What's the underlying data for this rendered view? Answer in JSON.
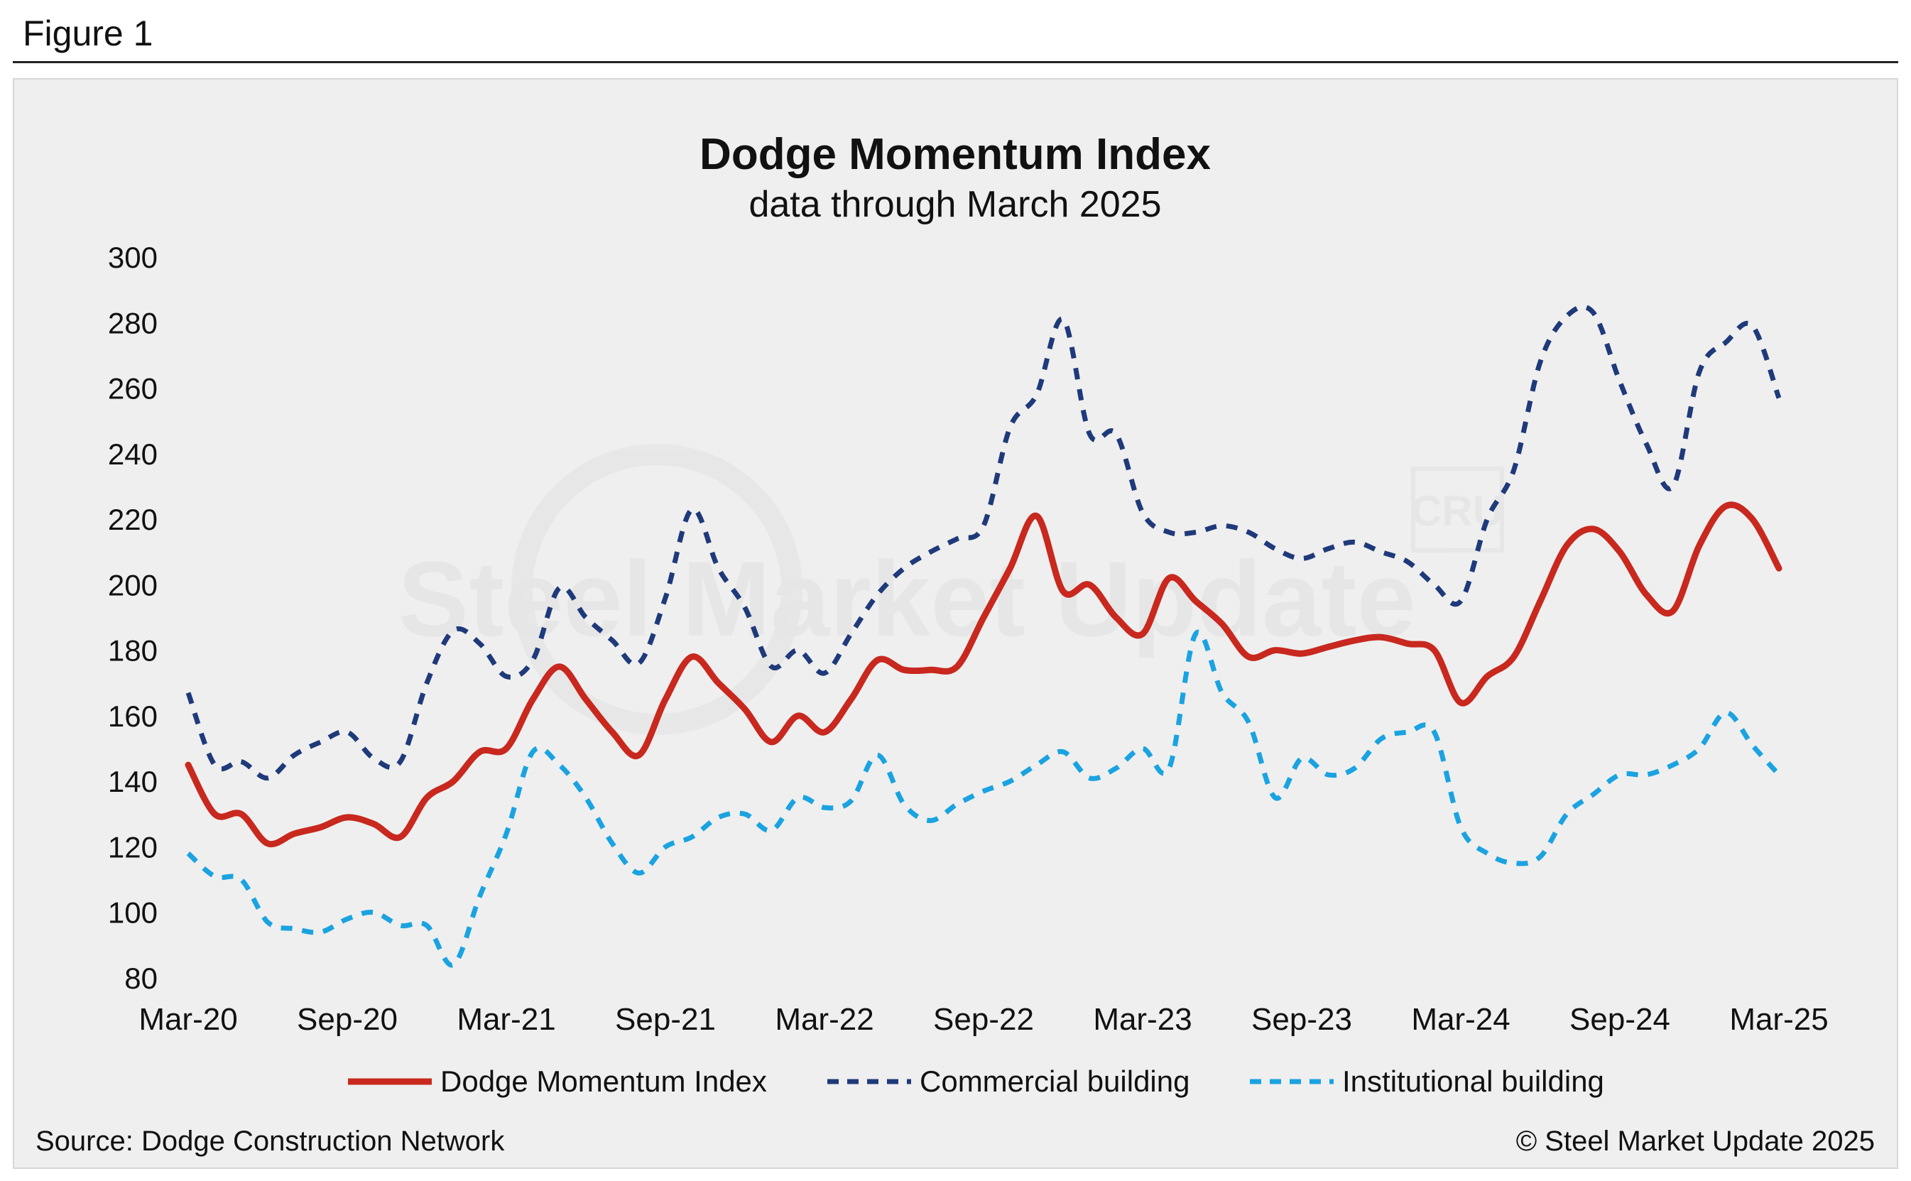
{
  "figure_label": "Figure 1",
  "source": "Source: Dodge Construction Network",
  "copyright": "© Steel Market Update 2025",
  "watermark": {
    "text": "Steel Market Update",
    "logo": "CRU"
  },
  "colors": {
    "dmi": "#c8281e",
    "commercial": "#1f3a7a",
    "institutional": "#1aa3e0",
    "panel_bg": "#efefef"
  },
  "chart_data": {
    "type": "line",
    "title": "Dodge Momentum Index",
    "subtitle": "data through March 2025",
    "ylim": [
      80,
      300
    ],
    "yticks": [
      300,
      280,
      260,
      240,
      220,
      200,
      180,
      160,
      140,
      120,
      100,
      80
    ],
    "xlim": [
      0,
      60
    ],
    "xticks": [
      {
        "label": "Mar-20",
        "x": 0
      },
      {
        "label": "Sep-20",
        "x": 6
      },
      {
        "label": "Mar-21",
        "x": 12
      },
      {
        "label": "Sep-21",
        "x": 18
      },
      {
        "label": "Mar-22",
        "x": 24
      },
      {
        "label": "Sep-22",
        "x": 30
      },
      {
        "label": "Mar-23",
        "x": 36
      },
      {
        "label": "Sep-23",
        "x": 42
      },
      {
        "label": "Mar-24",
        "x": 48
      },
      {
        "label": "Sep-24",
        "x": 54
      },
      {
        "label": "Mar-25",
        "x": 60
      }
    ],
    "legend_position": "bottom",
    "series": [
      {
        "name": "Dodge Momentum Index",
        "style": "solid",
        "color": "#c8281e",
        "values": [
          145,
          130,
          130,
          121,
          124,
          126,
          129,
          127,
          123,
          135,
          140,
          149,
          150,
          165,
          175,
          165,
          155,
          148,
          165,
          178,
          170,
          162,
          152,
          160,
          155,
          165,
          177,
          174,
          174,
          175,
          190,
          205,
          221,
          198,
          200,
          190,
          185,
          202,
          195,
          188,
          178,
          180,
          179,
          181,
          183,
          184,
          182,
          180,
          164,
          172,
          178,
          195,
          212,
          217,
          210,
          197,
          192,
          212,
          224,
          220,
          205
        ]
      },
      {
        "name": "Commercial building",
        "style": "dashed",
        "color": "#1f3a7a",
        "values": [
          167,
          145,
          146,
          141,
          148,
          152,
          155,
          147,
          146,
          170,
          186,
          182,
          172,
          177,
          199,
          190,
          183,
          176,
          196,
          223,
          205,
          193,
          175,
          180,
          173,
          185,
          197,
          205,
          210,
          214,
          218,
          248,
          258,
          281,
          246,
          246,
          222,
          216,
          216,
          218,
          216,
          211,
          208,
          211,
          213,
          210,
          207,
          200,
          195,
          220,
          235,
          268,
          282,
          283,
          262,
          243,
          230,
          265,
          274,
          279,
          257
        ]
      },
      {
        "name": "Institutional building",
        "style": "dashed",
        "color": "#1aa3e0",
        "values": [
          118,
          111,
          110,
          97,
          95,
          94,
          98,
          100,
          96,
          96,
          84,
          105,
          124,
          149,
          145,
          135,
          121,
          112,
          120,
          123,
          129,
          130,
          125,
          135,
          132,
          134,
          148,
          133,
          128,
          133,
          137,
          140,
          145,
          149,
          141,
          144,
          150,
          144,
          185,
          167,
          158,
          135,
          147,
          142,
          144,
          153,
          155,
          155,
          126,
          118,
          115,
          117,
          130,
          136,
          142,
          142,
          145,
          150,
          161,
          151,
          142
        ]
      }
    ]
  }
}
